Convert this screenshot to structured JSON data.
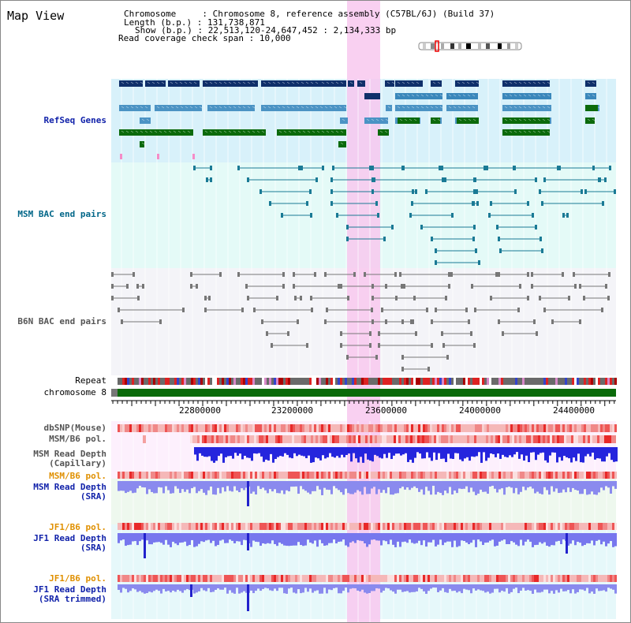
{
  "header": {
    "title": "Map View",
    "chromosome_label": "Chromosome",
    "chromosome_value": "Chromosome 8, reference assembly (C57BL/6J) (Build 37)",
    "length_label": "Length (b.p.)",
    "length_value": "131,738,871",
    "show_label": "Show (b.p.)",
    "show_value": "22,513,120-24,647,452 : 2,134,333 bp",
    "coverage_label": "Read coverage check span",
    "coverage_value": "10,000"
  },
  "tracks": {
    "refseq": "RefSeq Genes",
    "msm_bac": "MSM BAC end pairs",
    "b6n_bac": "B6N BAC end pairs",
    "repeat": "Repeat",
    "chromosome": "chromosome 8",
    "dbsnp": "dbSNP(Mouse)",
    "msm_b6_pol_1": "MSM/B6 pol.",
    "msm_read_depth_cap": "MSM Read Depth\n(Capillary)",
    "msm_b6_pol_2": "MSM/B6 pol.",
    "msm_read_depth_sra": "MSM Read Depth\n(SRA)",
    "jf1_b6_pol_1": "JF1/B6 pol.",
    "jf1_read_depth_sra": "JF1 Read Depth\n(SRA)",
    "jf1_b6_pol_2": "JF1/B6 pol.",
    "jf1_read_depth_trim": "JF1 Read Depth\n(SRA trimmed)"
  },
  "axis": {
    "ticks": [
      "22800000",
      "23200000",
      "23600000",
      "24000000",
      "24400000"
    ],
    "range": [
      22513120,
      24647452
    ]
  },
  "highlight_region": [
    23510000,
    23650000
  ],
  "colors": {
    "refseq_bg": "#d9f2fa",
    "bac_bg": "#e6faf8",
    "b6n_bg": "#f5f5f8",
    "highlight": "#f8c8ee",
    "gene_dark": "#0f2f6a",
    "gene_mid": "#4b93c4",
    "gene_green": "#0b6a0b",
    "chromosome_green": "#0a6a0a",
    "depth_blue": "#2222dd",
    "depth_light": "#8888ee",
    "pol_red": "#ee3333"
  }
}
